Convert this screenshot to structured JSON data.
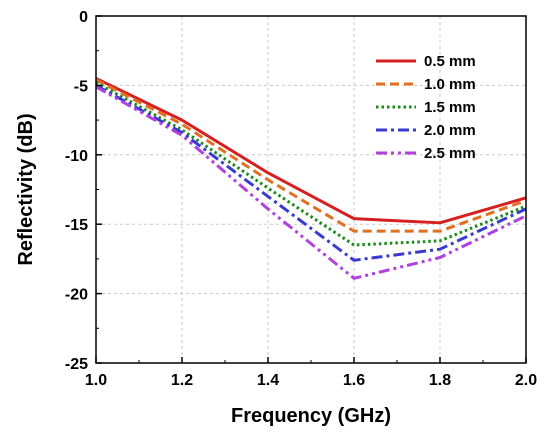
{
  "chart_data": {
    "type": "line",
    "title": "",
    "xlabel": "Frequency (GHz)",
    "ylabel": "Reflectivity (dB)",
    "xlim": [
      1.0,
      2.0
    ],
    "ylim": [
      -25,
      0
    ],
    "xticks": [
      1.0,
      1.2,
      1.4,
      1.6,
      1.8,
      2.0
    ],
    "yticks": [
      0,
      -5,
      -10,
      -15,
      -20,
      -25
    ],
    "xtick_labels": [
      "1.0",
      "1.2",
      "1.4",
      "1.6",
      "1.8",
      "2.0"
    ],
    "ytick_labels": [
      "0",
      "-5",
      "-10",
      "-15",
      "-20",
      "-25"
    ],
    "grid": true,
    "legend_position": "top-right",
    "x": [
      1.0,
      1.2,
      1.4,
      1.6,
      1.8,
      2.0
    ],
    "series": [
      {
        "name": "0.5 mm",
        "color": "#d62020",
        "dash": "solid",
        "values": [
          -4.5,
          -7.5,
          -11.3,
          -14.6,
          -14.9,
          -13.1
        ]
      },
      {
        "name": "1.0 mm",
        "color": "#e07020",
        "dash": "dashed",
        "values": [
          -4.6,
          -7.8,
          -11.8,
          -15.5,
          -15.5,
          -13.3
        ]
      },
      {
        "name": "1.5 mm",
        "color": "#1a8a1a",
        "dash": "dotted",
        "values": [
          -4.8,
          -8.2,
          -12.4,
          -16.5,
          -16.2,
          -13.7
        ]
      },
      {
        "name": "2.0 mm",
        "color": "#3a3ad0",
        "dash": "dashdot",
        "values": [
          -5.0,
          -8.4,
          -13.0,
          -17.6,
          -16.8,
          -13.9
        ]
      },
      {
        "name": "2.5 mm",
        "color": "#b040e0",
        "dash": "dashdotdot",
        "values": [
          -5.1,
          -8.6,
          -13.9,
          -18.9,
          -17.4,
          -14.4
        ]
      }
    ]
  }
}
